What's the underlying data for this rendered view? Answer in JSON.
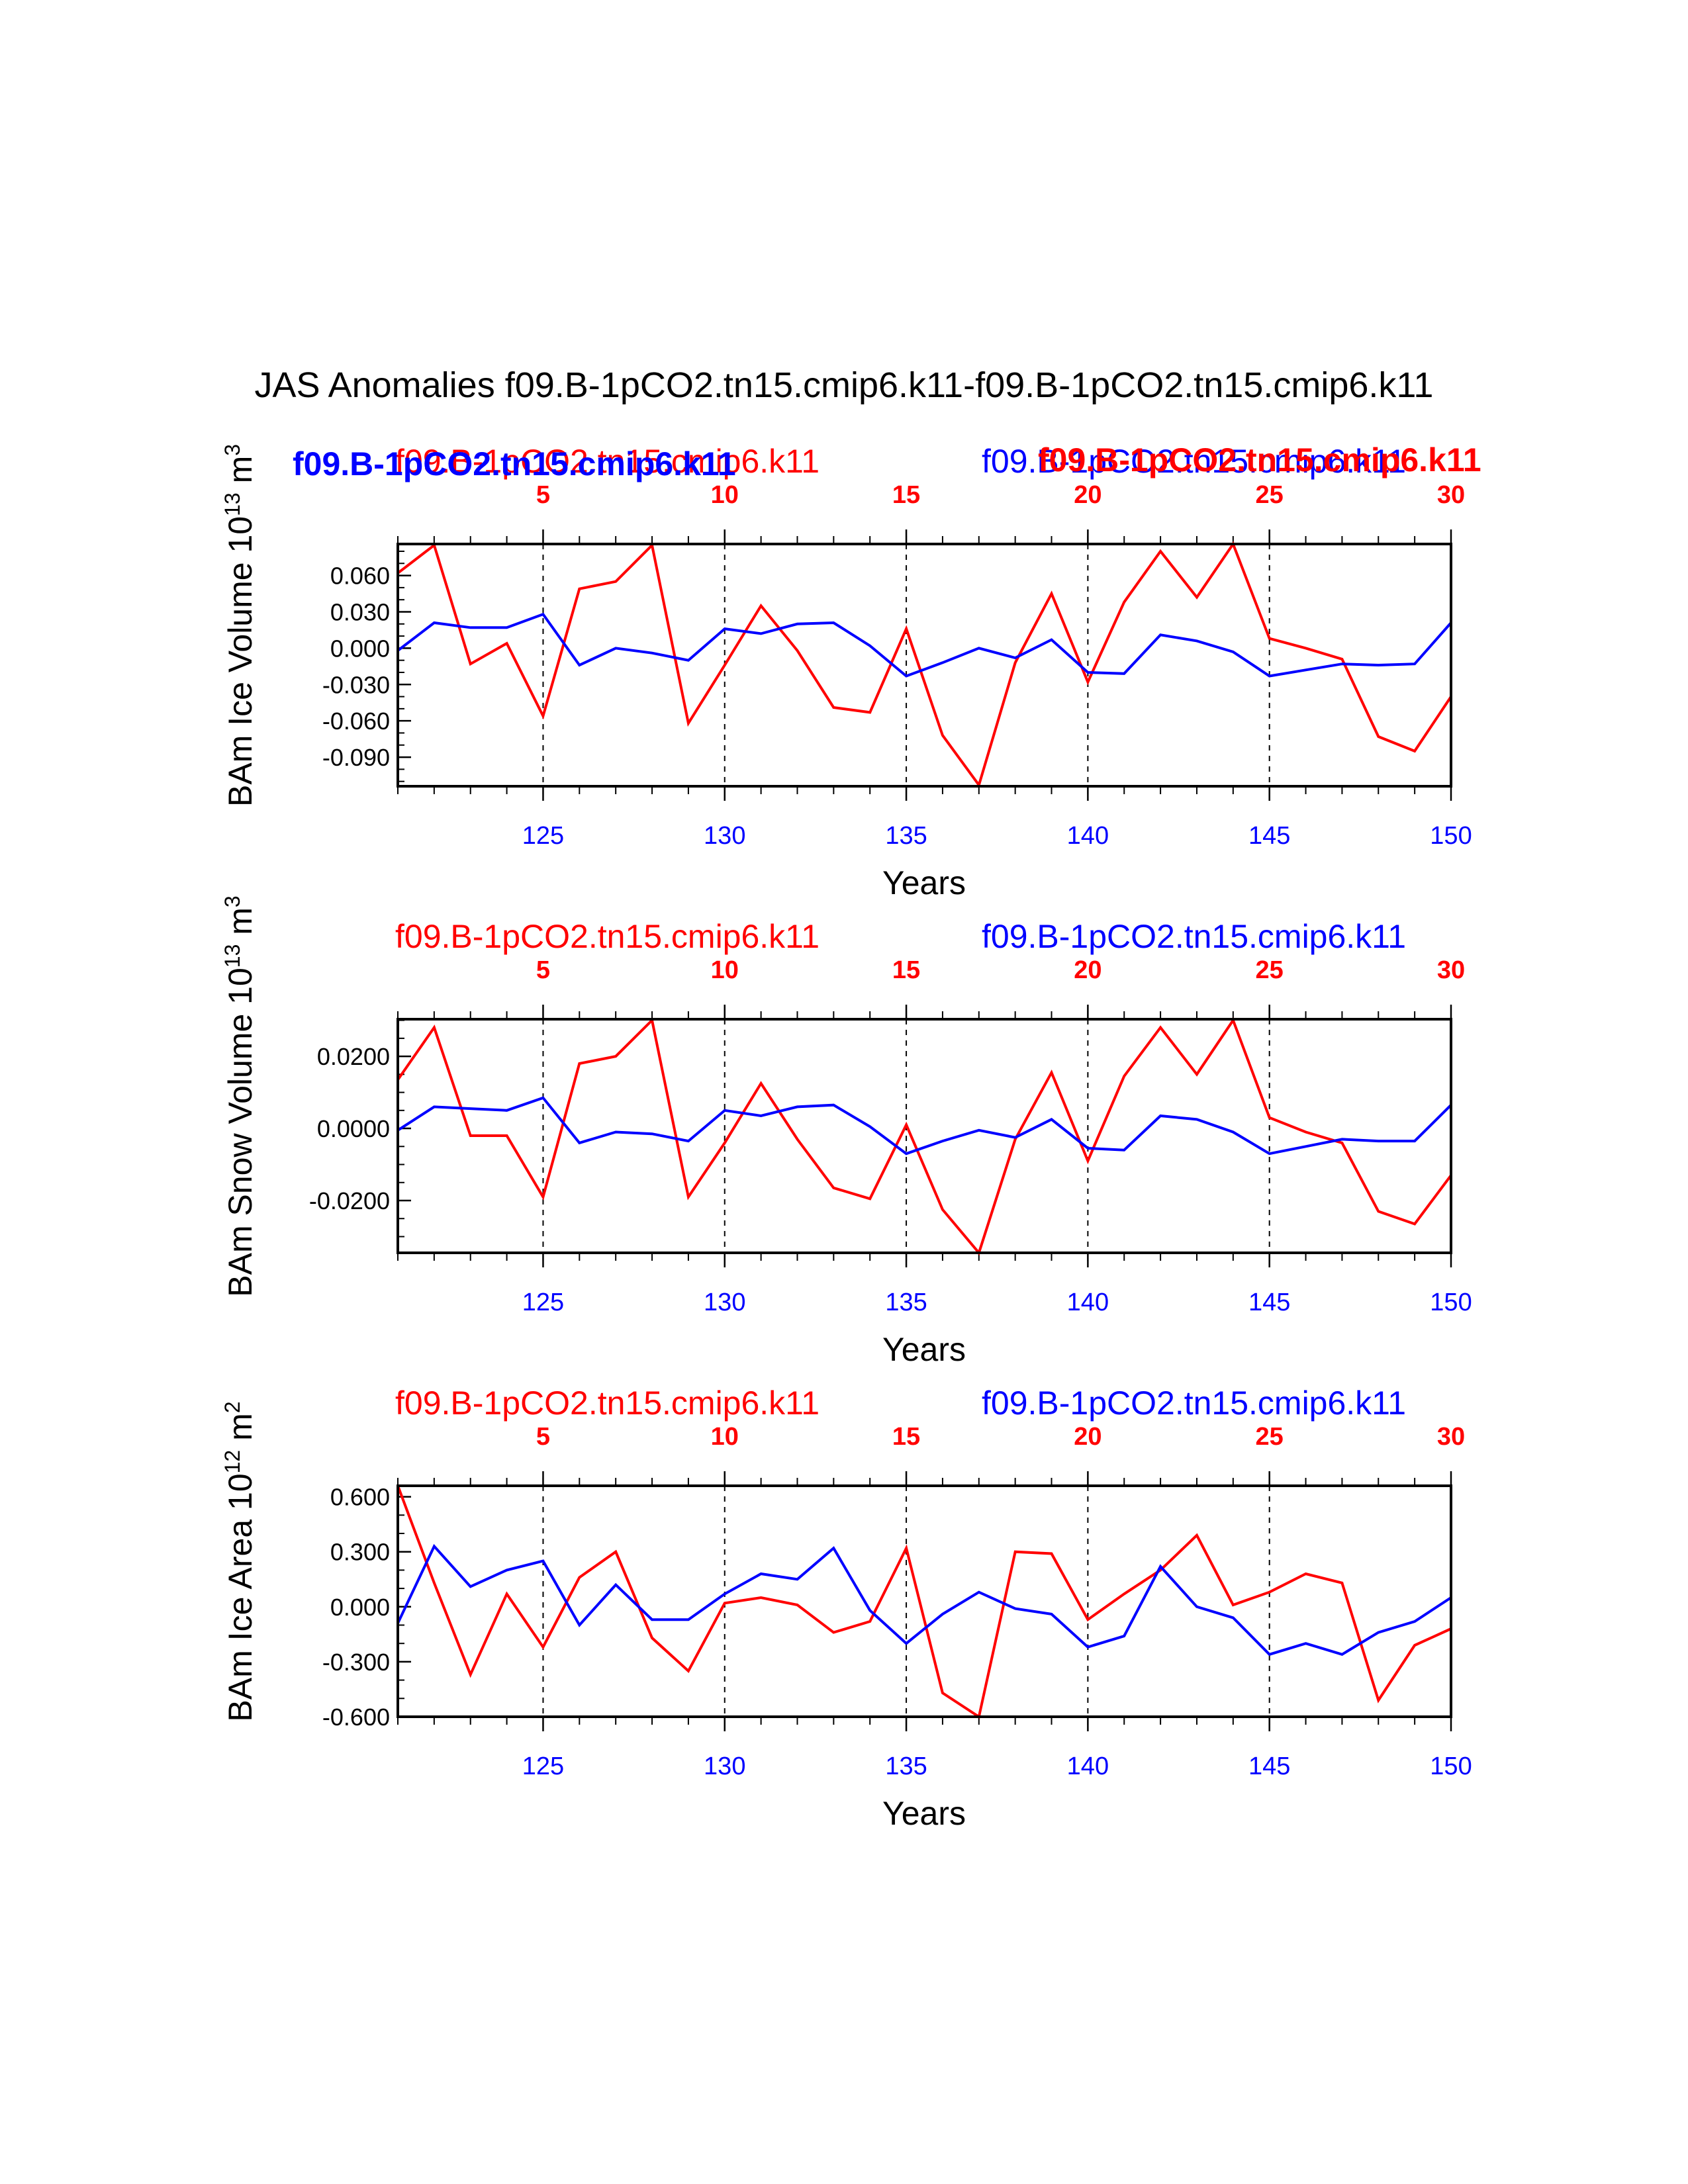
{
  "page_title": "JAS Anomalies f09.B-1pCO2.tn15.cmip6.k11-f09.B-1pCO2.tn15.cmip6.k11",
  "overlay_legend": {
    "left_bold_blue": "f09.B-1pCO2.tn15.cmip6.k11",
    "right_bold_red": "f09.B-1pCO2.tn15.cmip6.k11"
  },
  "colors": {
    "series_a": "#ff0000",
    "series_b": "#0000ff",
    "axis": "#000000"
  },
  "chart_data": [
    {
      "type": "line",
      "title": "",
      "ylabel": "BAm Ice Volume 10",
      "ylabel_exp": "13",
      "ylabel_unit": " m",
      "ylabel_unit_exp": "3",
      "xlabel": "Years",
      "run_label_left": "f09.B-1pCO2.tn15.cmip6.k11",
      "run_label_right": "f09.B-1pCO2.tn15.cmip6.k11",
      "ylim": [
        -0.114,
        0.086
      ],
      "yticks": [
        0.06,
        0.03,
        0.0,
        -0.03,
        -0.06,
        -0.09
      ],
      "ytick_labels": [
        "0.060",
        "0.030",
        "0.000",
        "-0.030",
        "-0.060",
        "-0.090"
      ],
      "yminor_step": 0.01,
      "x_bottom": {
        "range": [
          121,
          150
        ],
        "ticks": [
          125,
          130,
          135,
          140,
          145,
          150
        ],
        "labels": [
          "125",
          "130",
          "135",
          "140",
          "145",
          "150"
        ]
      },
      "x_top": {
        "range": [
          1,
          30
        ],
        "ticks": [
          5,
          10,
          15,
          20,
          25,
          30
        ],
        "labels": [
          "5",
          "10",
          "15",
          "20",
          "25",
          "30"
        ]
      },
      "x": [
        121,
        122,
        123,
        124,
        125,
        126,
        127,
        128,
        129,
        130,
        131,
        132,
        133,
        134,
        135,
        136,
        137,
        138,
        139,
        140,
        141,
        142,
        143,
        144,
        145,
        146,
        147,
        148,
        149,
        150
      ],
      "series": [
        {
          "name": "f09.B-1pCO2.tn15.cmip6.k11",
          "color": "#ff0000",
          "values": [
            0.062,
            0.085,
            -0.013,
            0.004,
            -0.056,
            0.049,
            0.055,
            0.085,
            -0.062,
            -0.014,
            0.035,
            -0.002,
            -0.049,
            -0.053,
            0.016,
            -0.072,
            -0.113,
            -0.012,
            0.045,
            -0.028,
            0.038,
            0.08,
            0.042,
            0.086,
            0.008,
            0.0,
            -0.009,
            -0.073,
            -0.085,
            -0.04
          ]
        },
        {
          "name": "f09.B-1pCO2.tn15.cmip6.k11",
          "color": "#0000ff",
          "values": [
            -0.002,
            0.021,
            0.017,
            0.017,
            0.028,
            -0.014,
            0.0,
            -0.004,
            -0.01,
            0.016,
            0.012,
            0.02,
            0.021,
            0.002,
            -0.023,
            -0.012,
            0.0,
            -0.008,
            0.007,
            -0.02,
            -0.021,
            0.011,
            0.006,
            -0.003,
            -0.023,
            -0.018,
            -0.013,
            -0.014,
            -0.013,
            0.021
          ]
        }
      ]
    },
    {
      "type": "line",
      "title": "",
      "ylabel": "BAm Snow Volume 10",
      "ylabel_exp": "13",
      "ylabel_unit": " m",
      "ylabel_unit_exp": "3",
      "xlabel": "Years",
      "run_label_left": "f09.B-1pCO2.tn15.cmip6.k11",
      "run_label_right": "f09.B-1pCO2.tn15.cmip6.k11",
      "ylim": [
        -0.0345,
        0.0303
      ],
      "yticks": [
        0.02,
        0.0,
        -0.02
      ],
      "ytick_labels": [
        "0.0200",
        "0.0000",
        "-0.0200"
      ],
      "yminor_step": 0.005,
      "x_bottom": {
        "range": [
          121,
          150
        ],
        "ticks": [
          125,
          130,
          135,
          140,
          145,
          150
        ],
        "labels": [
          "125",
          "130",
          "135",
          "140",
          "145",
          "150"
        ]
      },
      "x_top": {
        "range": [
          1,
          30
        ],
        "ticks": [
          5,
          10,
          15,
          20,
          25,
          30
        ],
        "labels": [
          "5",
          "10",
          "15",
          "20",
          "25",
          "30"
        ]
      },
      "x": [
        121,
        122,
        123,
        124,
        125,
        126,
        127,
        128,
        129,
        130,
        131,
        132,
        133,
        134,
        135,
        136,
        137,
        138,
        139,
        140,
        141,
        142,
        143,
        144,
        145,
        146,
        147,
        148,
        149,
        150
      ],
      "series": [
        {
          "name": "f09.B-1pCO2.tn15.cmip6.k11",
          "color": "#ff0000",
          "values": [
            0.0135,
            0.028,
            -0.002,
            -0.002,
            -0.019,
            0.018,
            0.02,
            0.03,
            -0.019,
            -0.004,
            0.0125,
            -0.003,
            -0.0165,
            -0.0195,
            0.001,
            -0.0225,
            -0.0345,
            -0.003,
            0.0155,
            -0.009,
            0.0145,
            0.028,
            0.015,
            0.03,
            0.003,
            -0.001,
            -0.004,
            -0.023,
            -0.0265,
            -0.013
          ]
        },
        {
          "name": "f09.B-1pCO2.tn15.cmip6.k11",
          "color": "#0000ff",
          "values": [
            -0.0005,
            0.006,
            0.0055,
            0.005,
            0.0085,
            -0.004,
            -0.001,
            -0.0015,
            -0.0035,
            0.005,
            0.0035,
            0.006,
            0.0065,
            0.0005,
            -0.007,
            -0.0035,
            -0.0005,
            -0.0025,
            0.0025,
            -0.0055,
            -0.006,
            0.0035,
            0.0025,
            -0.001,
            -0.007,
            -0.005,
            -0.003,
            -0.0035,
            -0.0035,
            0.0065
          ]
        }
      ]
    },
    {
      "type": "line",
      "title": "",
      "ylabel": "BAm Ice Area 10",
      "ylabel_exp": "12",
      "ylabel_unit": " m",
      "ylabel_unit_exp": "2",
      "xlabel": "Years",
      "run_label_left": "f09.B-1pCO2.tn15.cmip6.k11",
      "run_label_right": "f09.B-1pCO2.tn15.cmip6.k11",
      "ylim": [
        -0.6,
        0.66
      ],
      "yticks": [
        0.6,
        0.3,
        0.0,
        -0.3,
        -0.6
      ],
      "ytick_labels": [
        "0.600",
        "0.300",
        "0.000",
        "-0.300",
        "-0.600"
      ],
      "yminor_step": 0.1,
      "x_bottom": {
        "range": [
          121,
          150
        ],
        "ticks": [
          125,
          130,
          135,
          140,
          145,
          150
        ],
        "labels": [
          "125",
          "130",
          "135",
          "140",
          "145",
          "150"
        ]
      },
      "x_top": {
        "range": [
          1,
          30
        ],
        "ticks": [
          5,
          10,
          15,
          20,
          25,
          30
        ],
        "labels": [
          "5",
          "10",
          "15",
          "20",
          "25",
          "30"
        ]
      },
      "x": [
        121,
        122,
        123,
        124,
        125,
        126,
        127,
        128,
        129,
        130,
        131,
        132,
        133,
        134,
        135,
        136,
        137,
        138,
        139,
        140,
        141,
        142,
        143,
        144,
        145,
        146,
        147,
        148,
        149,
        150
      ],
      "series": [
        {
          "name": "f09.B-1pCO2.tn15.cmip6.k11",
          "color": "#ff0000",
          "values": [
            0.66,
            0.13,
            -0.37,
            0.07,
            -0.22,
            0.16,
            0.3,
            -0.17,
            -0.35,
            0.02,
            0.05,
            0.01,
            -0.14,
            -0.08,
            0.32,
            -0.47,
            -0.6,
            0.3,
            0.29,
            -0.07,
            0.07,
            0.2,
            0.39,
            0.01,
            0.08,
            0.18,
            0.13,
            -0.51,
            -0.21,
            -0.12
          ]
        },
        {
          "name": "f09.B-1pCO2.tn15.cmip6.k11",
          "color": "#0000ff",
          "values": [
            -0.09,
            0.33,
            0.11,
            0.2,
            0.25,
            -0.1,
            0.12,
            -0.07,
            -0.07,
            0.07,
            0.18,
            0.15,
            0.32,
            -0.02,
            -0.2,
            -0.04,
            0.08,
            -0.01,
            -0.04,
            -0.22,
            -0.16,
            0.22,
            0.0,
            -0.06,
            -0.26,
            -0.2,
            -0.26,
            -0.14,
            -0.08,
            0.05
          ]
        }
      ]
    }
  ]
}
